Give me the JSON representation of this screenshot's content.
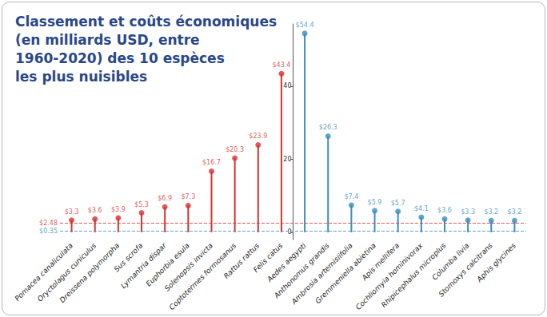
{
  "chart_data": {
    "type": "lollipop",
    "title": "Classement et coûts économiques\n(en milliards USD, entre\n1960-2020) des 10 espèces\nles plus nuisibles",
    "categories": [
      "Pomacea canaliculata",
      "Oryctolagus cuniculus",
      "Dreissena polymorpha",
      "Sus scrofa",
      "Lymantria dispar",
      "Euphorbia esula",
      "Solenopsis invicta",
      "Coptotermes formosanus",
      "Rattus rattus",
      "Felis catus",
      "Aedes aegypti",
      "Anthonomus grandis",
      "Ambrosia artemisiifolia",
      "Gremmeniella abietina",
      "Apis mellifera",
      "Cochliomyia hominivorax",
      "Rhipicephalus microplus",
      "Columba livia",
      "Stomoxys calcitrans",
      "Aphis glycines"
    ],
    "values": [
      3.3,
      3.6,
      3.9,
      5.3,
      6.9,
      7.3,
      16.7,
      20.3,
      23.9,
      43.4,
      54.4,
      26.3,
      7.4,
      5.9,
      5.7,
      4.1,
      3.6,
      3.3,
      3.2,
      3.2
    ],
    "value_labels": [
      "$3.3",
      "$3.6",
      "$3.9",
      "$5.3",
      "$6.9",
      "$7.3",
      "$16.7",
      "$20.3",
      "$23.9",
      "$43.4",
      "$54.4",
      "$26.3",
      "$7.4",
      "$5.9",
      "$5.7",
      "$4.1",
      "$3.6",
      "$3.3",
      "$3.2",
      "$3.2"
    ],
    "colors": [
      "#d7322f",
      "#d7322f",
      "#d7322f",
      "#d7322f",
      "#d7322f",
      "#d7322f",
      "#d7322f",
      "#d7322f",
      "#d7322f",
      "#d7322f",
      "#3a8dc0",
      "#3a8dc0",
      "#3a8dc0",
      "#3a8dc0",
      "#3a8dc0",
      "#3a8dc0",
      "#3a8dc0",
      "#3a8dc0",
      "#3a8dc0",
      "#3a8dc0"
    ],
    "annotations": [
      {
        "value": 2.48,
        "label": "$2.48",
        "color": "#d7322f"
      },
      {
        "value": 0.35,
        "label": "$0.35",
        "color": "#3a8dc0"
      }
    ],
    "ylim": [
      -2,
      57
    ],
    "yticks": [
      0,
      20,
      40
    ],
    "grid": false,
    "data_labels": true
  }
}
